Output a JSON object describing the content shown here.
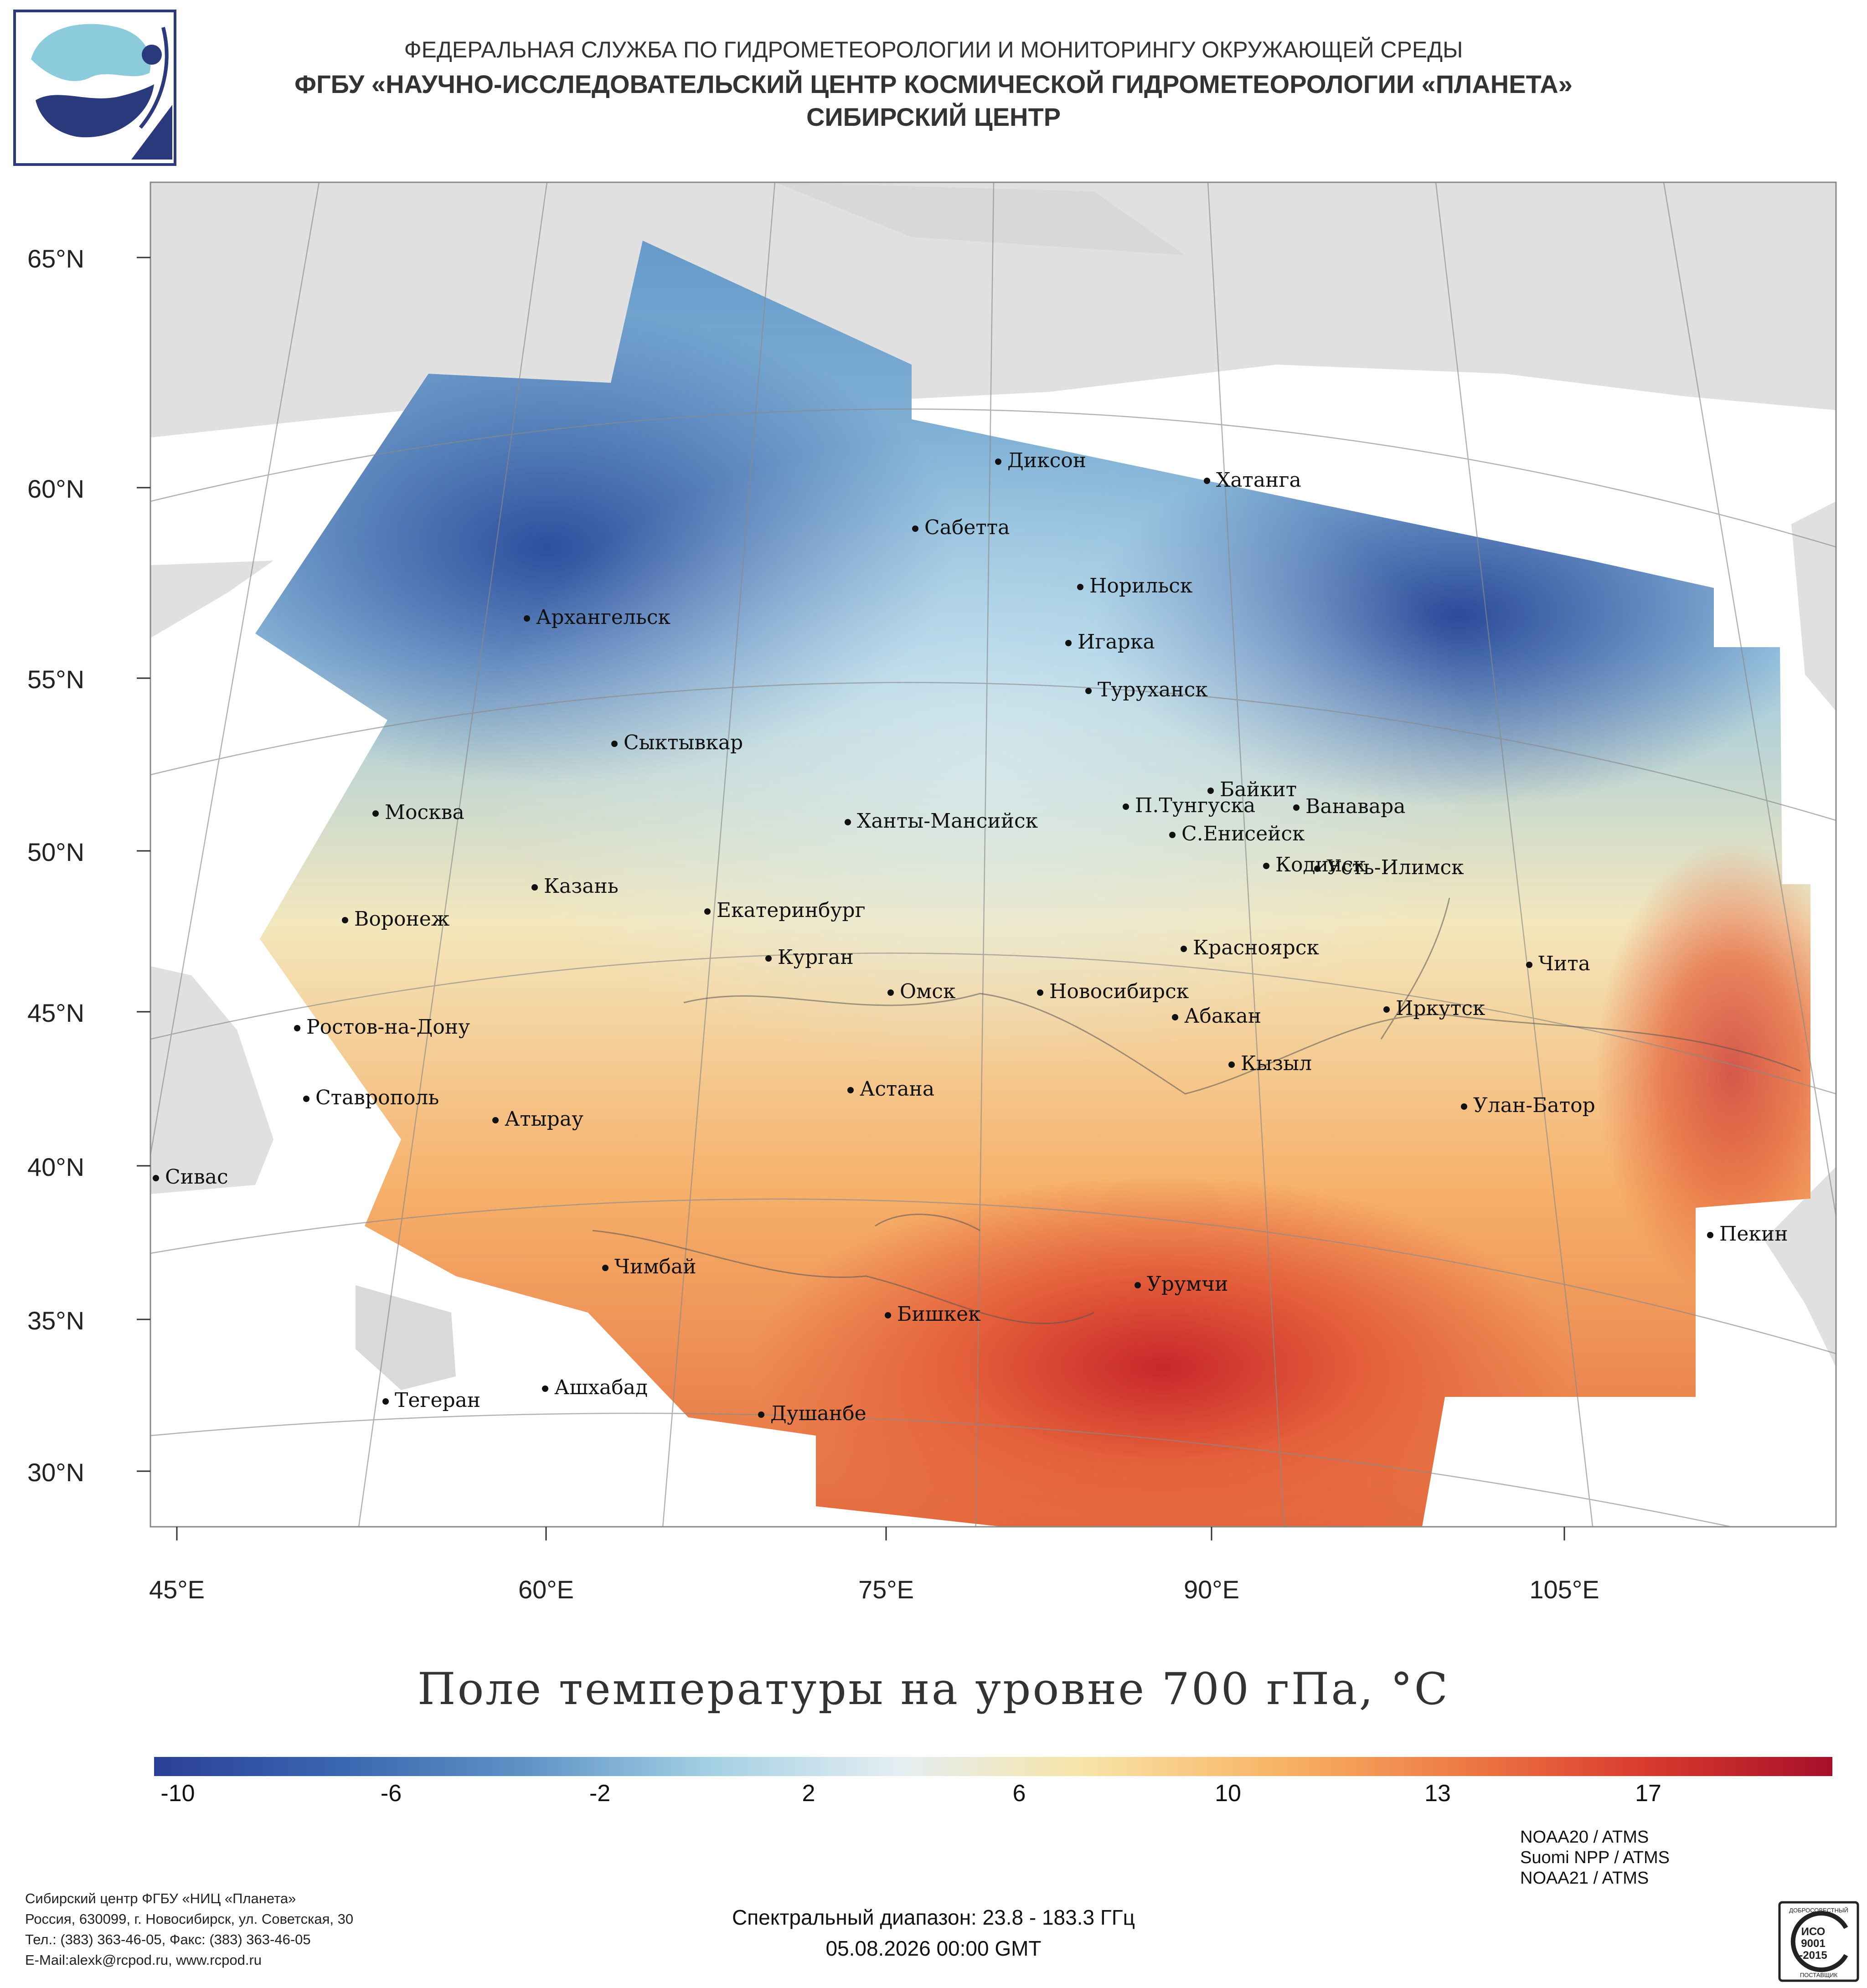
{
  "header": {
    "line1": "ФЕДЕРАЛЬНАЯ СЛУЖБА ПО ГИДРОМЕТЕОРОЛОГИИ И МОНИТОРИНГУ ОКРУЖАЮЩЕЙ СРЕДЫ",
    "line2": "ФГБУ «НАУЧНО-ИССЛЕДОВАТЕЛЬСКИЙ ЦЕНТР КОСМИЧЕСКОЙ ГИДРОМЕТЕОРОЛОГИИ «ПЛАНЕТА»",
    "line3": "СИБИРСКИЙ ЦЕНТР"
  },
  "map": {
    "title": "Поле температуры на уровне 700 гПа, °C",
    "lat_labels": [
      "65°N",
      "60°N",
      "55°N",
      "50°N",
      "45°N",
      "40°N",
      "35°N",
      "30°N"
    ],
    "lon_labels": [
      "45°E",
      "60°E",
      "75°E",
      "90°E",
      "105°E"
    ],
    "cities": [
      {
        "name": "Диксон"
      },
      {
        "name": "Хатанга"
      },
      {
        "name": "Сабетта"
      },
      {
        "name": "Архангельск"
      },
      {
        "name": "Норильск"
      },
      {
        "name": "Игарка"
      },
      {
        "name": "Туруханск"
      },
      {
        "name": "Сыктывкар"
      },
      {
        "name": "Байкит"
      },
      {
        "name": "П.Тунгуска"
      },
      {
        "name": "Ванавара"
      },
      {
        "name": "Москва"
      },
      {
        "name": "Ханты-Мансийск"
      },
      {
        "name": "С.Енисейск"
      },
      {
        "name": "Кодинск"
      },
      {
        "name": "Усть-Илимск"
      },
      {
        "name": "Казань"
      },
      {
        "name": "Екатеринбург"
      },
      {
        "name": "Воронеж"
      },
      {
        "name": "Красноярск"
      },
      {
        "name": "Курган"
      },
      {
        "name": "Чита"
      },
      {
        "name": "Омск"
      },
      {
        "name": "Новосибирск"
      },
      {
        "name": "Иркутск"
      },
      {
        "name": "Абакан"
      },
      {
        "name": "Ростов-на-Дону"
      },
      {
        "name": "Кызыл"
      },
      {
        "name": "Астана"
      },
      {
        "name": "Ставрополь"
      },
      {
        "name": "Улан-Батор"
      },
      {
        "name": "Атырау"
      },
      {
        "name": "Сивас"
      },
      {
        "name": "Пекин"
      },
      {
        "name": "Чимбай"
      },
      {
        "name": "Урумчи"
      },
      {
        "name": "Бишкек"
      },
      {
        "name": "Ашхабад"
      },
      {
        "name": "Тегеран"
      },
      {
        "name": "Душанбе"
      }
    ]
  },
  "colorbar": {
    "ticks": [
      "-10",
      "-6",
      "-2",
      "2",
      "6",
      "10",
      "13",
      "17"
    ],
    "colors": [
      "#2b3f98",
      "#3a66b0",
      "#5f93c6",
      "#a5d0e4",
      "#e4eef2",
      "#f8e3a6",
      "#f8b566",
      "#ee7b45",
      "#d93a2d",
      "#a50f2a"
    ]
  },
  "footer": {
    "org_line1": "Сибирский центр ФГБУ «НИЦ «Планета»",
    "org_line2": "Россия, 630099, г. Новосибирск, ул. Советская, 30",
    "org_line3": "Тел.: (383) 363-46-05, Факс: (383) 363-46-05",
    "org_line4": "E-Mail:alexk@rcpod.ru, www.rcpod.ru",
    "sat1": "NOAA20 / ATMS",
    "sat2": "Suomi NPP / ATMS",
    "sat3": "NOAA21 / ATMS",
    "spectral": "Спектральный диапазон: 23.8 - 183.3 ГГц",
    "datetime": "05.08.2026 00:00 GMT",
    "iso": {
      "top": "ДОБРОСОВЕСТНЫЙ",
      "mid1": "ИСО",
      "mid2": "9001",
      "mid3": "-2015",
      "bottom": "ПОСТАВЩИК"
    }
  }
}
